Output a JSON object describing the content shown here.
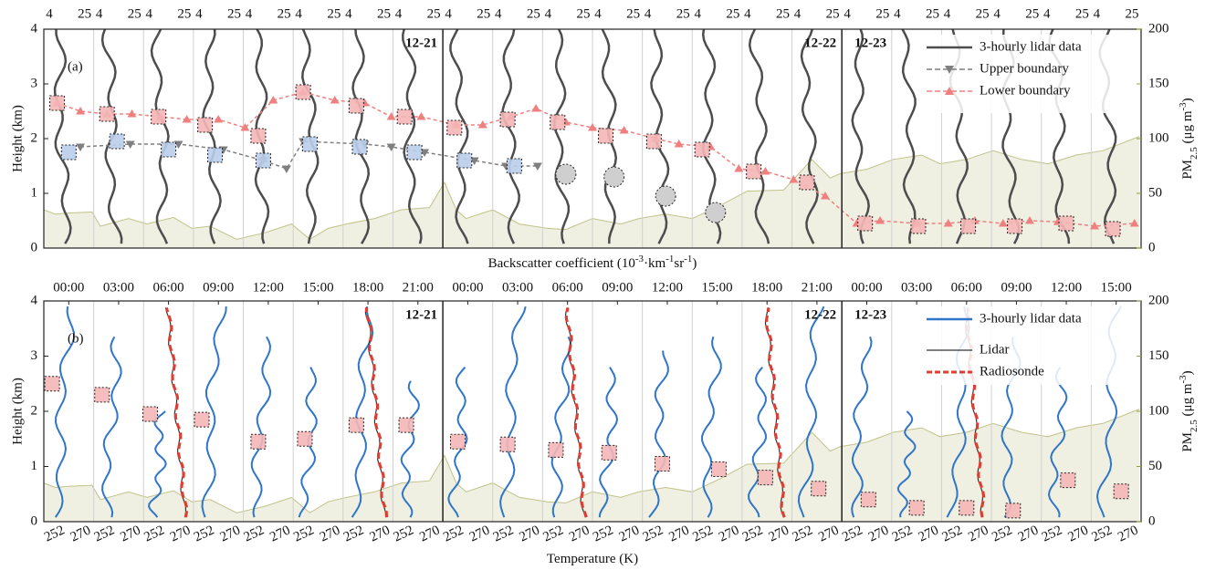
{
  "chart_data": [
    {
      "type": "profile",
      "panel_label": "(a)",
      "xlim": [
        -1.5,
        64.5
      ],
      "profile_times": [
        0,
        3,
        6,
        9,
        12,
        15,
        18,
        21,
        24,
        27,
        30,
        33,
        36,
        39,
        42,
        45,
        48,
        51,
        54,
        57,
        60,
        63
      ],
      "day_breaks": [
        22.5,
        46.5
      ],
      "day_labels": [
        "12-21",
        "12-22",
        "12-23"
      ],
      "top_ticks": [
        4,
        25
      ],
      "ylim": [
        0,
        4
      ],
      "yticks": [
        0,
        1,
        2,
        3,
        4
      ],
      "ylabel": "Height (km)",
      "y2lim": [
        0,
        200
      ],
      "y2ticks": [
        0,
        50,
        100,
        150,
        200
      ],
      "y2label": {
        "parts": [
          {
            "text": "PM"
          },
          {
            "text": "2.5",
            "sub": true
          },
          {
            "text": " (μg m"
          },
          {
            "text": "-3",
            "sup": true
          },
          {
            "text": ")"
          }
        ]
      },
      "xlabel": {
        "parts": [
          {
            "text": "Backscatter coefficient (10"
          },
          {
            "text": "-3",
            "sup": true
          },
          {
            "text": "·km"
          },
          {
            "text": "-1",
            "sup": true
          },
          {
            "text": "sr"
          },
          {
            "text": "-1",
            "sup": true
          },
          {
            "text": ")"
          }
        ]
      },
      "legend": "upper right",
      "profiles": {
        "name": "3-hourly lidar data",
        "color": "#4d4d4d"
      },
      "series": [
        {
          "name": "Upper boundary",
          "color": "#7f7f7f",
          "marker": "triangle-down",
          "x": [
            0.7,
            3.7,
            6.6,
            9.3,
            11.7,
            13.1,
            14.1,
            17.8,
            19.4,
            21.4,
            24.4,
            26.3,
            28.2
          ],
          "values": [
            1.85,
            1.9,
            1.9,
            1.8,
            1.6,
            1.45,
            1.95,
            1.9,
            1.85,
            1.75,
            1.6,
            1.5,
            1.5
          ]
        },
        {
          "name": "Lower boundary",
          "color": "#f08080",
          "marker": "triangle-up",
          "x": [
            -0.7,
            0.7,
            2.3,
            3.8,
            5.5,
            7.1,
            9.0,
            10.6,
            12.3,
            14.1,
            16.0,
            17.8,
            19.4,
            21.2,
            23.3,
            24.9,
            26.6,
            28.1,
            29.9,
            31.5,
            33.4,
            35.3,
            36.7,
            38.6,
            40.3,
            41.9,
            43.6,
            45.5,
            47.4,
            48.8,
            51.0,
            52.9,
            54.5,
            56.2,
            57.8,
            59.5,
            61.7,
            64.1
          ],
          "values": [
            2.65,
            2.5,
            2.45,
            2.45,
            2.4,
            2.35,
            2.35,
            2.2,
            2.7,
            2.85,
            2.7,
            2.65,
            2.4,
            2.4,
            2.25,
            2.25,
            2.4,
            2.55,
            2.3,
            2.2,
            2.15,
            2.0,
            1.9,
            1.85,
            1.45,
            1.4,
            1.25,
            0.95,
            0.45,
            0.5,
            0.45,
            0.45,
            0.5,
            0.45,
            0.5,
            0.48,
            0.4,
            0.45
          ]
        }
      ],
      "box_markers": [
        {
          "color": "#f4b6b6",
          "x": [
            -0.7,
            2.3,
            5.4,
            8.2,
            11.4,
            14.1,
            17.3,
            20.2,
            23.2,
            26.4,
            29.4,
            32.3,
            35.2,
            38.1,
            41.2,
            44.4,
            47.9,
            51.1,
            54.1,
            56.9,
            60.0,
            62.8
          ],
          "values": [
            2.65,
            2.45,
            2.4,
            2.25,
            2.05,
            2.85,
            2.6,
            2.4,
            2.2,
            2.35,
            2.3,
            2.05,
            1.95,
            1.8,
            1.4,
            1.2,
            0.45,
            0.4,
            0.4,
            0.4,
            0.45,
            0.35
          ]
        },
        {
          "color": "#b9cdea",
          "x": [
            0.0,
            2.9,
            6.0,
            8.8,
            11.7,
            14.5,
            17.5,
            20.8,
            23.8,
            26.8
          ],
          "values": [
            1.75,
            1.95,
            1.8,
            1.7,
            1.6,
            1.9,
            1.85,
            1.75,
            1.6,
            1.5
          ]
        }
      ],
      "circle_markers": {
        "color": "#cfcfcf",
        "x": [
          29.9,
          32.8,
          35.9,
          38.9
        ],
        "values": [
          1.35,
          1.3,
          0.95,
          0.65
        ]
      },
      "area": {
        "color": "#efefe2",
        "edge": "#c2c28a",
        "axis": "y2",
        "x": [
          -1.5,
          -0.8,
          0.0,
          1.4,
          1.9,
          3.6,
          4.7,
          6.3,
          7.4,
          8.5,
          10.1,
          11.8,
          13.4,
          14.5,
          15.6,
          16.7,
          18.4,
          20.0,
          21.7,
          22.6,
          23.3,
          23.9,
          25.5,
          27.1,
          28.8,
          29.9,
          31.5,
          33.2,
          34.3,
          35.9,
          37.5,
          39.2,
          40.8,
          43.0,
          44.7,
          45.8,
          46.4,
          48.0,
          49.6,
          51.3,
          52.4,
          54.0,
          55.6,
          57.3,
          58.9,
          60.6,
          62.2,
          64.4
        ],
        "values": [
          35,
          31,
          32,
          33,
          20,
          27,
          22,
          28,
          18,
          20,
          8,
          14,
          22,
          8,
          18,
          22,
          27,
          35,
          37,
          60,
          35,
          27,
          35,
          22,
          18,
          17,
          27,
          22,
          27,
          31,
          27,
          39,
          52,
          53,
          81,
          64,
          68,
          72,
          81,
          85,
          77,
          81,
          89,
          81,
          77,
          85,
          89,
          102
        ]
      }
    },
    {
      "type": "profile",
      "panel_label": "(b)",
      "xlim": [
        -1.5,
        64.5
      ],
      "profile_times": [
        0,
        3,
        6,
        9,
        12,
        15,
        18,
        21,
        24,
        27,
        30,
        33,
        36,
        39,
        42,
        45,
        48,
        51,
        54,
        57,
        60,
        63
      ],
      "xticks": [
        {
          "value": 0,
          "label": "00:00"
        },
        {
          "value": 3,
          "label": "03:00"
        },
        {
          "value": 6,
          "label": "06:00"
        },
        {
          "value": 9,
          "label": "09:00"
        },
        {
          "value": 12,
          "label": "12:00"
        },
        {
          "value": 15,
          "label": "15:00"
        },
        {
          "value": 18,
          "label": "18:00"
        },
        {
          "value": 21,
          "label": "21:00"
        },
        {
          "value": 24,
          "label": "00:00"
        },
        {
          "value": 27,
          "label": "03:00"
        },
        {
          "value": 30,
          "label": "06:00"
        },
        {
          "value": 33,
          "label": "09:00"
        },
        {
          "value": 36,
          "label": "12:00"
        },
        {
          "value": 39,
          "label": "15:00"
        },
        {
          "value": 42,
          "label": "18:00"
        },
        {
          "value": 45,
          "label": "21:00"
        },
        {
          "value": 48,
          "label": "00:00"
        },
        {
          "value": 51,
          "label": "03:00"
        },
        {
          "value": 54,
          "label": "06:00"
        },
        {
          "value": 57,
          "label": "09:00"
        },
        {
          "value": 60,
          "label": "12:00"
        },
        {
          "value": 63,
          "label": "15:00"
        }
      ],
      "day_breaks": [
        22.5,
        46.5
      ],
      "day_labels": [
        "12-21",
        "12-22",
        "12-23"
      ],
      "bottom_ticks": [
        252,
        270
      ],
      "ylim": [
        0,
        4
      ],
      "yticks": [
        0,
        1,
        2,
        3,
        4
      ],
      "ylabel": "Height (km)",
      "y2lim": [
        0,
        200
      ],
      "y2ticks": [
        0,
        50,
        100,
        150,
        200
      ],
      "y2label": {
        "parts": [
          {
            "text": "PM"
          },
          {
            "text": "2.5",
            "sub": true
          },
          {
            "text": " (μg m"
          },
          {
            "text": "-3",
            "sup": true
          },
          {
            "text": ")"
          }
        ]
      },
      "xlabel": {
        "parts": [
          {
            "text": "Temperature (K)"
          }
        ]
      },
      "legend": "upper right",
      "profiles": {
        "name": "3-hourly lidar data",
        "color": "#2f75c8"
      },
      "overlay_times": [
        6,
        18,
        30,
        42,
        54
      ],
      "overlays": [
        {
          "name": "Lidar",
          "color": "#333333"
        },
        {
          "name": "Radiosonde",
          "color": "#e03c31",
          "dash": true
        }
      ],
      "series": [],
      "box_markers": [
        {
          "color": "#f4b6b6",
          "x": [
            -1.0,
            2.0,
            4.9,
            8.0,
            11.4,
            14.2,
            17.3,
            20.3,
            23.4,
            26.4,
            29.3,
            32.5,
            35.7,
            39.1,
            41.9,
            45.1,
            48.1,
            51.0,
            54.0,
            56.8,
            60.1,
            63.3
          ],
          "values": [
            2.5,
            2.3,
            1.95,
            1.85,
            1.45,
            1.5,
            1.75,
            1.75,
            1.45,
            1.4,
            1.3,
            1.25,
            1.05,
            0.95,
            0.8,
            0.6,
            0.4,
            0.25,
            0.25,
            0.2,
            0.75,
            0.55
          ]
        }
      ],
      "area": {
        "color": "#efefe2",
        "edge": "#c2c28a",
        "axis": "y2",
        "x": [
          -1.5,
          -0.8,
          0.0,
          1.4,
          1.9,
          3.6,
          4.7,
          6.3,
          7.4,
          8.5,
          10.1,
          11.8,
          13.4,
          14.5,
          15.6,
          16.7,
          18.4,
          20.0,
          21.7,
          22.6,
          23.3,
          23.9,
          25.5,
          27.1,
          28.8,
          29.9,
          31.5,
          33.2,
          34.3,
          35.9,
          37.5,
          39.2,
          40.8,
          43.0,
          44.7,
          45.8,
          46.4,
          48.0,
          49.6,
          51.3,
          52.4,
          54.0,
          55.6,
          57.3,
          58.9,
          60.6,
          62.2,
          64.4
        ],
        "values": [
          35,
          31,
          32,
          33,
          20,
          27,
          22,
          28,
          18,
          20,
          8,
          14,
          22,
          8,
          18,
          22,
          27,
          35,
          37,
          60,
          35,
          27,
          35,
          22,
          18,
          17,
          27,
          22,
          27,
          31,
          27,
          39,
          52,
          53,
          81,
          64,
          68,
          72,
          81,
          85,
          77,
          81,
          89,
          81,
          77,
          85,
          89,
          102
        ]
      }
    }
  ]
}
